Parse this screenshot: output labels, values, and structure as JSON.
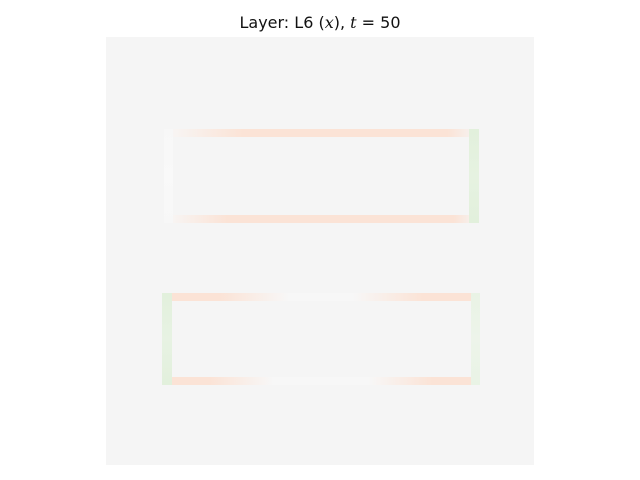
{
  "title": {
    "prefix": "Layer: L6 (",
    "var": "x",
    "mid": "), ",
    "tvar": "t",
    "suffix": " = 50"
  },
  "colors": {
    "background": "#f5f5f5",
    "negative": "#fbe3d6",
    "positive": "#e2f0dc",
    "neutral": "#f7f7f7"
  }
}
